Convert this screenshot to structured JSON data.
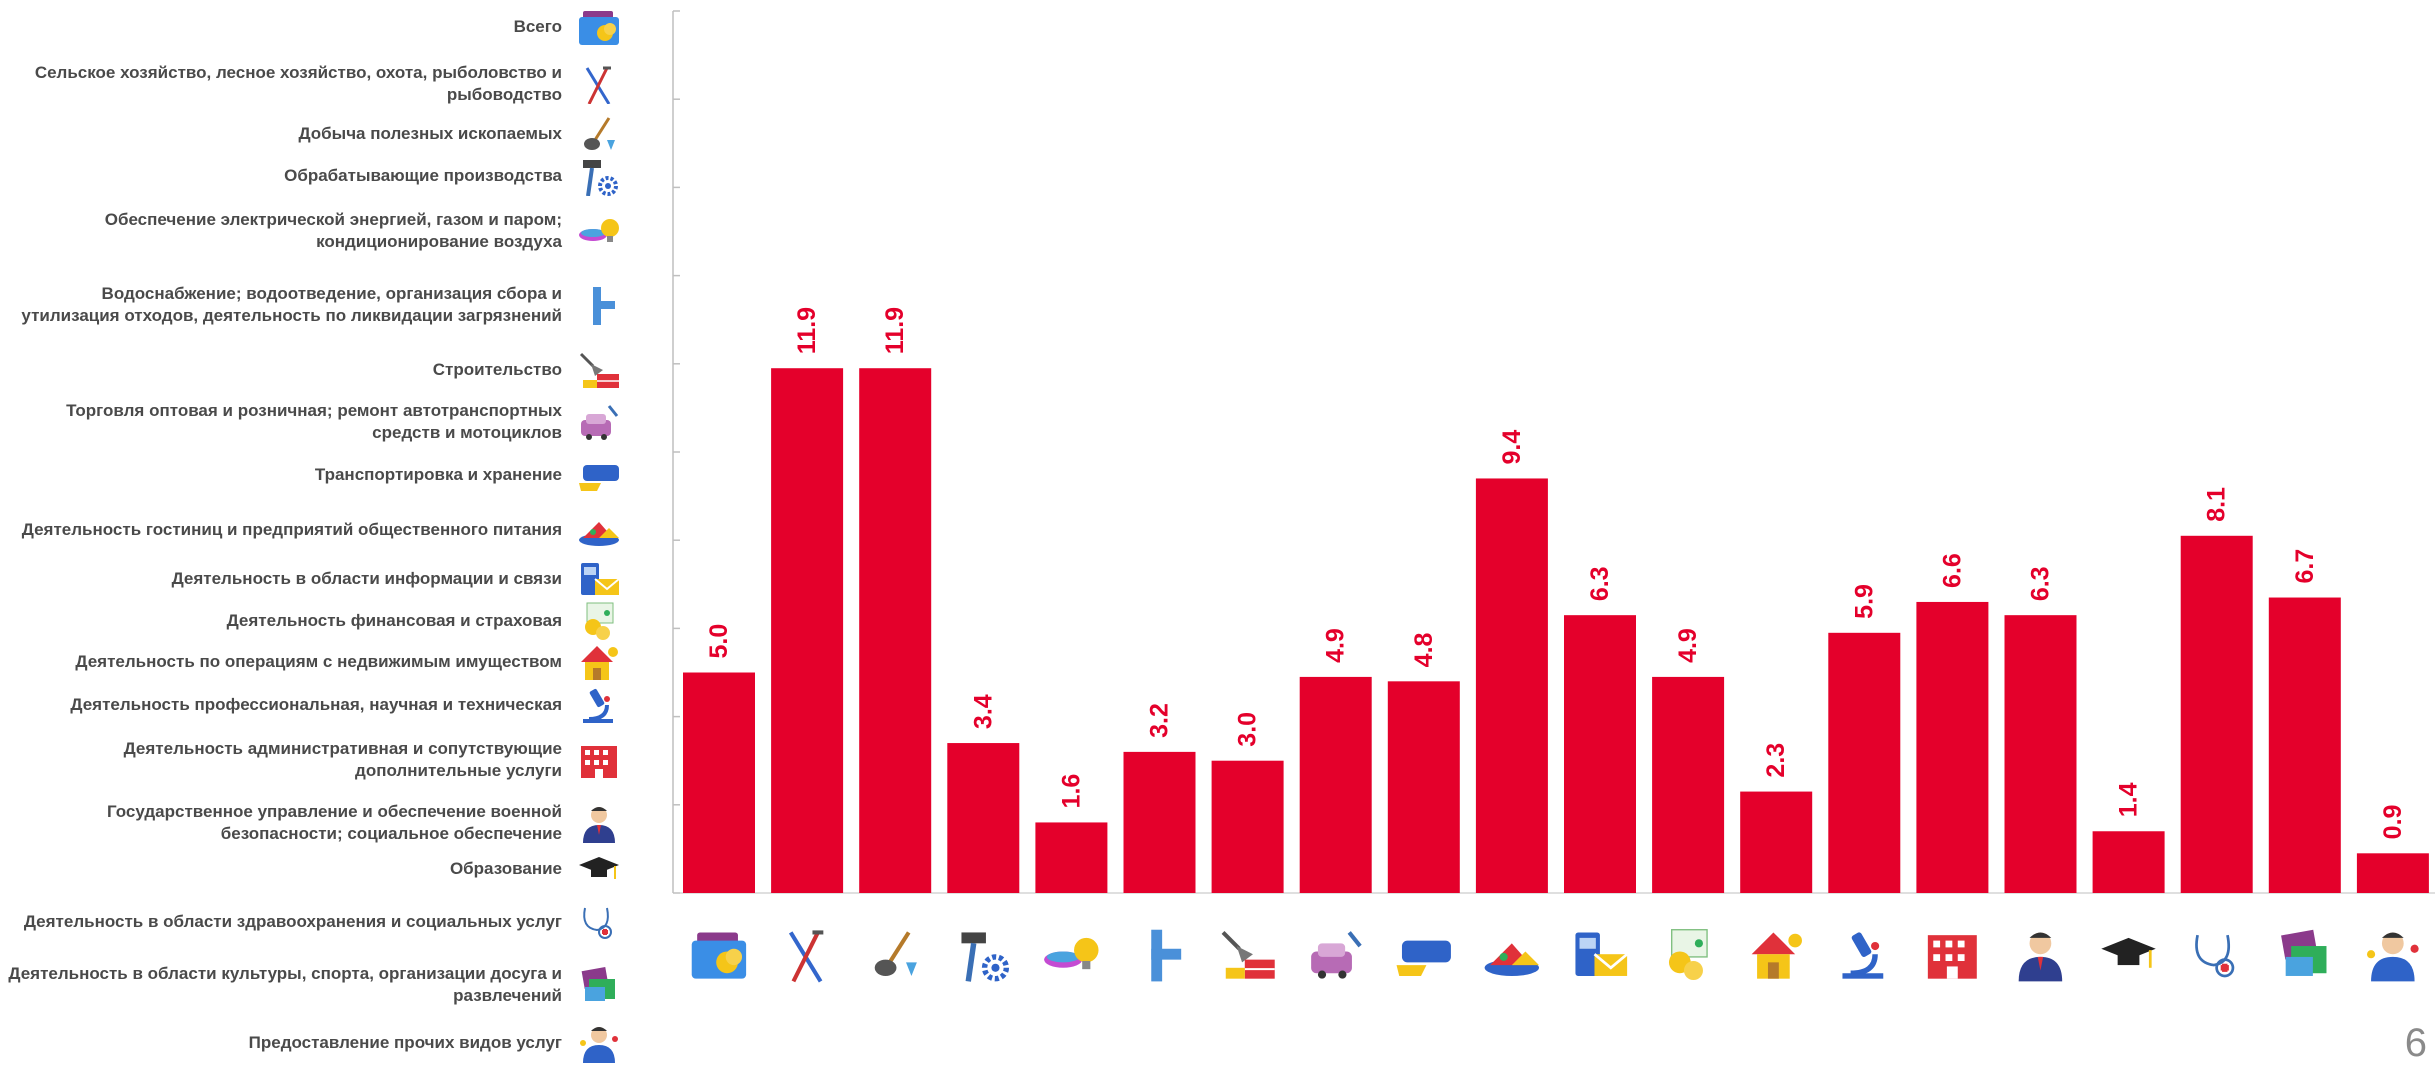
{
  "chart_data": {
    "type": "bar",
    "categories": [
      "Всего",
      "Сельское хозяйство, лесное хозяйство, охота, рыболовство и рыбоводство",
      "Добыча полезных ископаемых",
      "Обрабатывающие производства",
      "Обеспечение электрической энергией, газом и паром; кондиционирование воздуха",
      "Водоснабжение; водоотведение, организация сбора и утилизация отходов, деятельность по ликвидации загрязнений",
      "Строительство",
      "Торговля оптовая и розничная; ремонт автотранспортных средств и мотоциклов",
      "Транспортировка и хранение",
      "Деятельность гостиниц и предприятий общественного питания",
      "Деятельность в области информации и связи",
      "Деятельность финансовая и страховая",
      "Деятельность по операциям с недвижимым имуществом",
      "Деятельность профессиональная, научная и техническая",
      "Деятельность административная и сопутствующие дополнительные услуги",
      "Государственное управление и обеспечение военной безопасности; социальное обеспечение",
      "Образование",
      "Деятельность в области здравоохранения и социальных услуг",
      "Деятельность в области культуры, спорта, организации досуга и развлечений",
      "Предоставление прочих видов услуг"
    ],
    "values": [
      5.0,
      11.9,
      11.9,
      3.4,
      1.6,
      3.2,
      3.0,
      4.9,
      4.8,
      9.4,
      6.3,
      4.9,
      2.3,
      5.9,
      6.6,
      6.3,
      1.4,
      8.1,
      6.7,
      0.9
    ],
    "value_labels": [
      "5.0",
      "11.9",
      "11.9",
      "3.4",
      "1.6",
      "3.2",
      "3.0",
      "4.9",
      "4.8",
      "9.4",
      "6.3",
      "4.9",
      "2.3",
      "5.9",
      "6.6",
      "6.3",
      "1.4",
      "8.1",
      "6.7",
      "0.9"
    ],
    "icons": [
      "folder-coins-icon",
      "pitchfork-tools-icon",
      "shovel-gem-icon",
      "hammer-gear-icon",
      "bulb-gas-icon",
      "pipe-icon",
      "trowel-brick-icon",
      "car-wrench-icon",
      "truck-icon",
      "food-dish-icon",
      "phone-mail-icon",
      "finance-coins-icon",
      "house-icon",
      "microscope-icon",
      "office-building-icon",
      "official-person-icon",
      "graduation-cap-icon",
      "stethoscope-icon",
      "tickets-icon",
      "service-person-icon"
    ],
    "title": "",
    "xlabel": "",
    "ylabel": "",
    "ylim": [
      0,
      20
    ],
    "y_tick_step": 2,
    "grid": false,
    "bar_color": "#e4002b",
    "label_color": "#e4002b",
    "label_orientation": "vertical"
  },
  "page_number": "6"
}
